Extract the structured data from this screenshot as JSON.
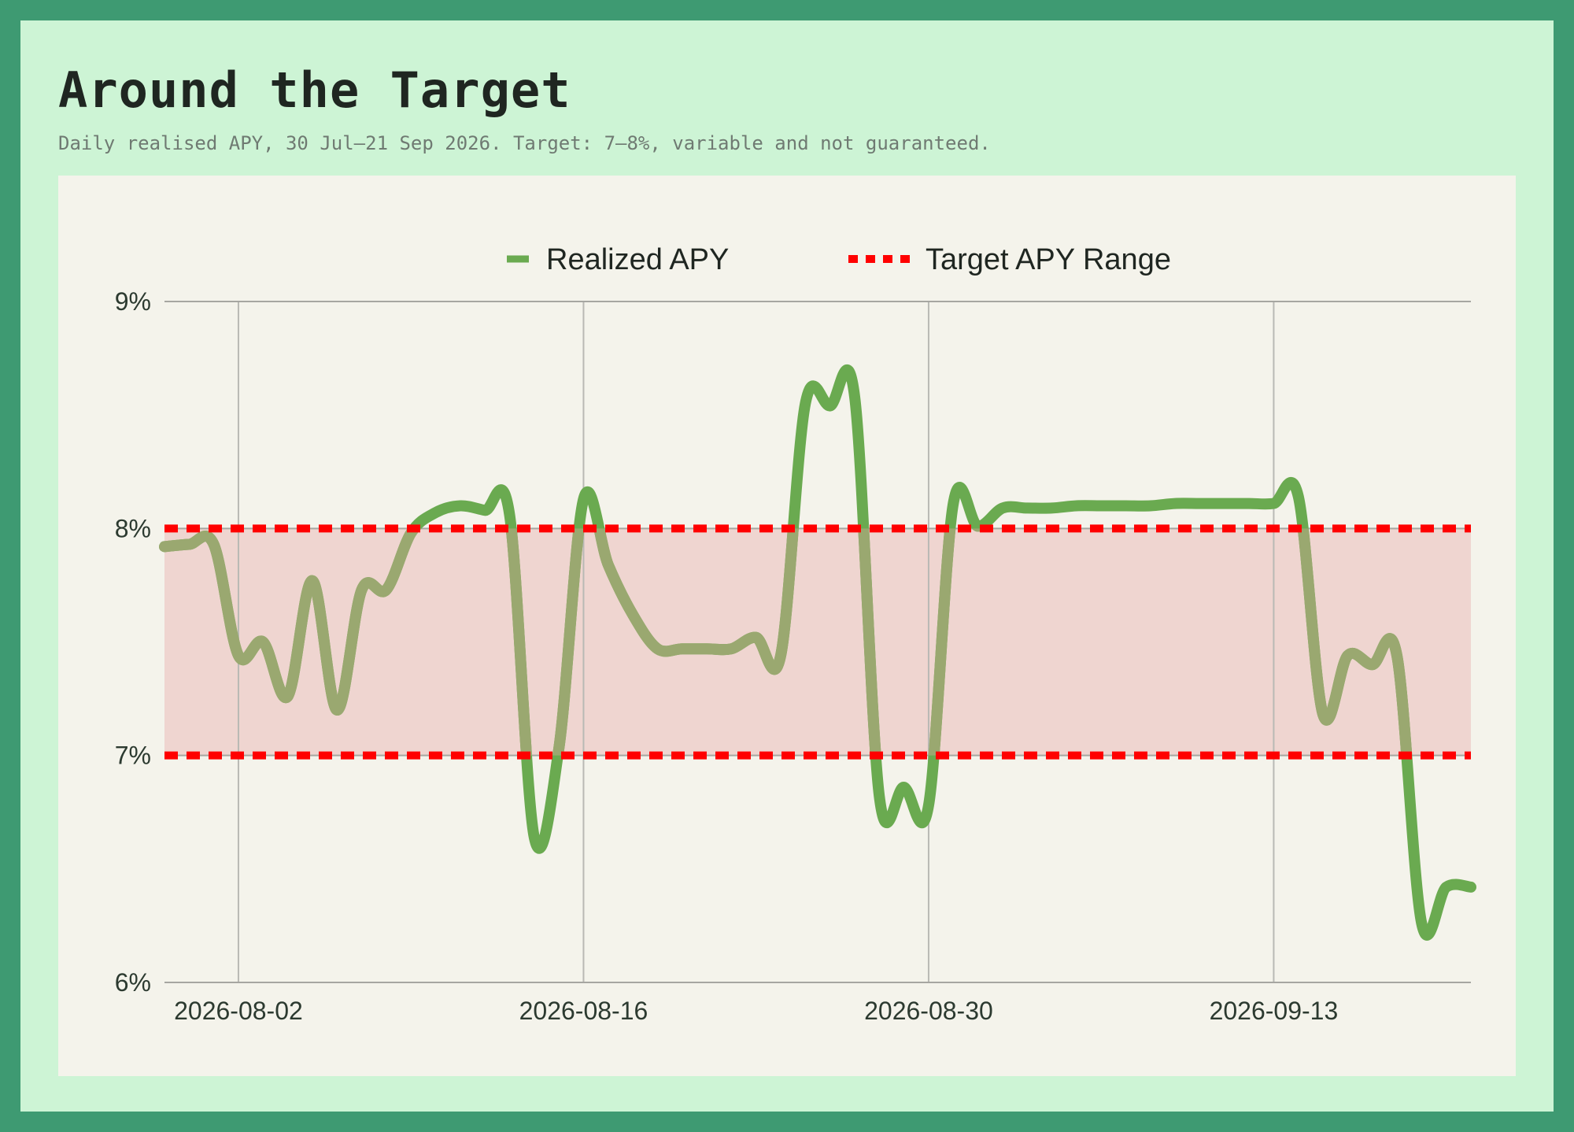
{
  "header": {
    "title": "Around the Target",
    "subtitle": "Daily realised APY, 30 Jul–21 Sep 2026. Target: 7–8%, variable and not guaranteed."
  },
  "chart_data": {
    "type": "line",
    "title": "Around the Target",
    "subtitle": "Daily realised APY, 30 Jul–21 Sep 2026. Target: 7–8%, variable and not guaranteed.",
    "xlabel": "",
    "ylabel": "",
    "x_start": "2026-07-30",
    "x_end": "2026-09-21",
    "ylim": [
      6,
      9
    ],
    "y_ticks": [
      6,
      7,
      8,
      9
    ],
    "y_tick_labels": [
      "6%",
      "7%",
      "8%",
      "9%"
    ],
    "x_ticks": [
      "2026-08-02",
      "2026-08-16",
      "2026-08-30",
      "2026-09-13"
    ],
    "x_tick_labels": [
      "2026-08-02",
      "2026-08-16",
      "2026-08-30",
      "2026-09-13"
    ],
    "grid": true,
    "legend_position": "top-center",
    "target_range": {
      "name": "Target APY Range",
      "low": 7,
      "high": 8,
      "color": "#ff0000",
      "fill": "#efd5d0"
    },
    "series": [
      {
        "name": "Realized APY",
        "color": "#6aaa50",
        "in_range_color": "#9aa870",
        "x": [
          "2026-07-30",
          "2026-07-31",
          "2026-08-01",
          "2026-08-02",
          "2026-08-03",
          "2026-08-04",
          "2026-08-05",
          "2026-08-06",
          "2026-08-07",
          "2026-08-08",
          "2026-08-09",
          "2026-08-10",
          "2026-08-11",
          "2026-08-12",
          "2026-08-13",
          "2026-08-14",
          "2026-08-15",
          "2026-08-16",
          "2026-08-17",
          "2026-08-18",
          "2026-08-19",
          "2026-08-20",
          "2026-08-21",
          "2026-08-22",
          "2026-08-23",
          "2026-08-24",
          "2026-08-25",
          "2026-08-26",
          "2026-08-27",
          "2026-08-28",
          "2026-08-29",
          "2026-08-30",
          "2026-08-31",
          "2026-09-01",
          "2026-09-02",
          "2026-09-03",
          "2026-09-04",
          "2026-09-05",
          "2026-09-06",
          "2026-09-07",
          "2026-09-08",
          "2026-09-09",
          "2026-09-10",
          "2026-09-11",
          "2026-09-12",
          "2026-09-13",
          "2026-09-14",
          "2026-09-15",
          "2026-09-16",
          "2026-09-17",
          "2026-09-18",
          "2026-09-19",
          "2026-09-20",
          "2026-09-21"
        ],
        "values": [
          7.92,
          7.93,
          7.93,
          7.44,
          7.5,
          7.26,
          7.77,
          7.2,
          7.73,
          7.73,
          7.98,
          8.07,
          8.1,
          8.08,
          8.06,
          6.64,
          7.03,
          8.13,
          7.84,
          7.62,
          7.47,
          7.47,
          7.47,
          7.47,
          7.52,
          7.44,
          8.55,
          8.54,
          8.58,
          6.82,
          6.86,
          6.78,
          8.11,
          8.01,
          8.09,
          8.09,
          8.09,
          8.1,
          8.1,
          8.1,
          8.1,
          8.11,
          8.11,
          8.11,
          8.11,
          8.11,
          8.14,
          7.18,
          7.44,
          7.4,
          7.44,
          6.26,
          6.42,
          6.42
        ]
      }
    ]
  }
}
